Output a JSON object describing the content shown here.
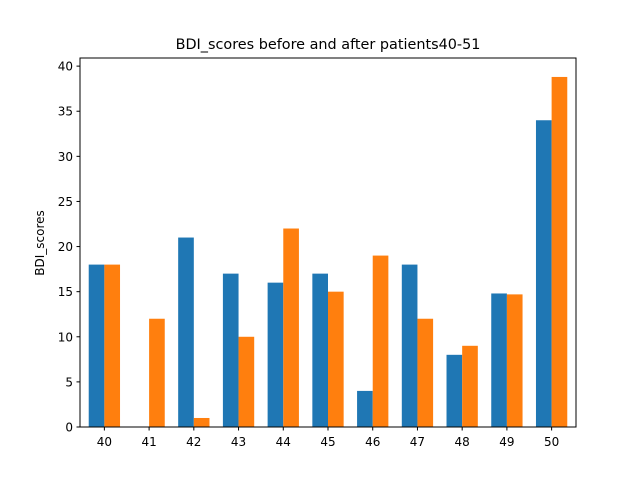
{
  "chart_data": {
    "type": "bar",
    "title": "BDI_scores before and after patients40-51",
    "xlabel": "",
    "ylabel": "BDI_scores",
    "categories": [
      "40",
      "41",
      "42",
      "43",
      "44",
      "45",
      "46",
      "47",
      "48",
      "49",
      "50"
    ],
    "series": [
      {
        "color": "#1f77b4",
        "values": [
          18,
          0,
          21,
          17,
          16,
          17,
          4,
          18,
          8,
          14.8,
          34
        ]
      },
      {
        "color": "#ff7f0e",
        "values": [
          18,
          12,
          1,
          10,
          22,
          15,
          19,
          12,
          9,
          14.7,
          38.8
        ]
      }
    ],
    "ylim": [
      0,
      40.9
    ],
    "yticks": [
      "0",
      "5",
      "10",
      "15",
      "20",
      "25",
      "30",
      "35",
      "40"
    ],
    "grid": false,
    "legend": "none"
  }
}
